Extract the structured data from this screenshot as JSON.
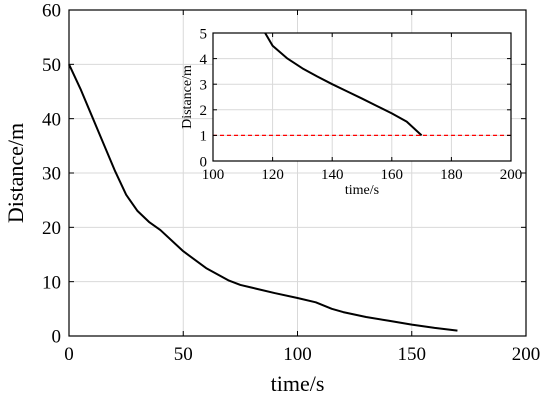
{
  "chart_data": [
    {
      "type": "line",
      "title": "",
      "xlabel": "time/s",
      "ylabel": "Distance/m",
      "xlim": [
        0,
        200
      ],
      "ylim": [
        0,
        60
      ],
      "xticks": [
        0,
        50,
        100,
        150,
        200
      ],
      "yticks": [
        0,
        10,
        20,
        30,
        40,
        50,
        60
      ],
      "grid": true,
      "series": [
        {
          "color": "#000000",
          "x": [
            0,
            5,
            10,
            15,
            20,
            25,
            30,
            35,
            40,
            50,
            60,
            70,
            75,
            80,
            90,
            100,
            108,
            115,
            120,
            130,
            140,
            150,
            160,
            170
          ],
          "y": [
            50,
            45.5,
            40.5,
            35.5,
            30.5,
            26,
            23,
            21,
            19.5,
            15.6,
            12.5,
            10.2,
            9.4,
            8.9,
            7.9,
            7,
            6.2,
            5,
            4.4,
            3.5,
            2.8,
            2.1,
            1.5,
            1
          ]
        }
      ]
    },
    {
      "type": "line",
      "title": "",
      "xlabel": "time/s",
      "ylabel": "Distance/m",
      "xlim": [
        100,
        200
      ],
      "ylim": [
        0,
        5
      ],
      "xticks": [
        100,
        120,
        140,
        160,
        180,
        200
      ],
      "yticks": [
        0,
        1,
        2,
        3,
        4,
        5
      ],
      "grid": true,
      "series": [
        {
          "color": "#000000",
          "x": [
            117.5,
            120,
            125,
            130,
            135,
            140,
            145,
            150,
            155,
            160,
            165,
            170
          ],
          "y": [
            5,
            4.5,
            4,
            3.62,
            3.3,
            3.0,
            2.72,
            2.44,
            2.15,
            1.86,
            1.54,
            1.0
          ]
        },
        {
          "color": "#ff0000",
          "style": "dashed",
          "x": [
            100,
            200
          ],
          "y": [
            1,
            1
          ]
        }
      ]
    }
  ]
}
